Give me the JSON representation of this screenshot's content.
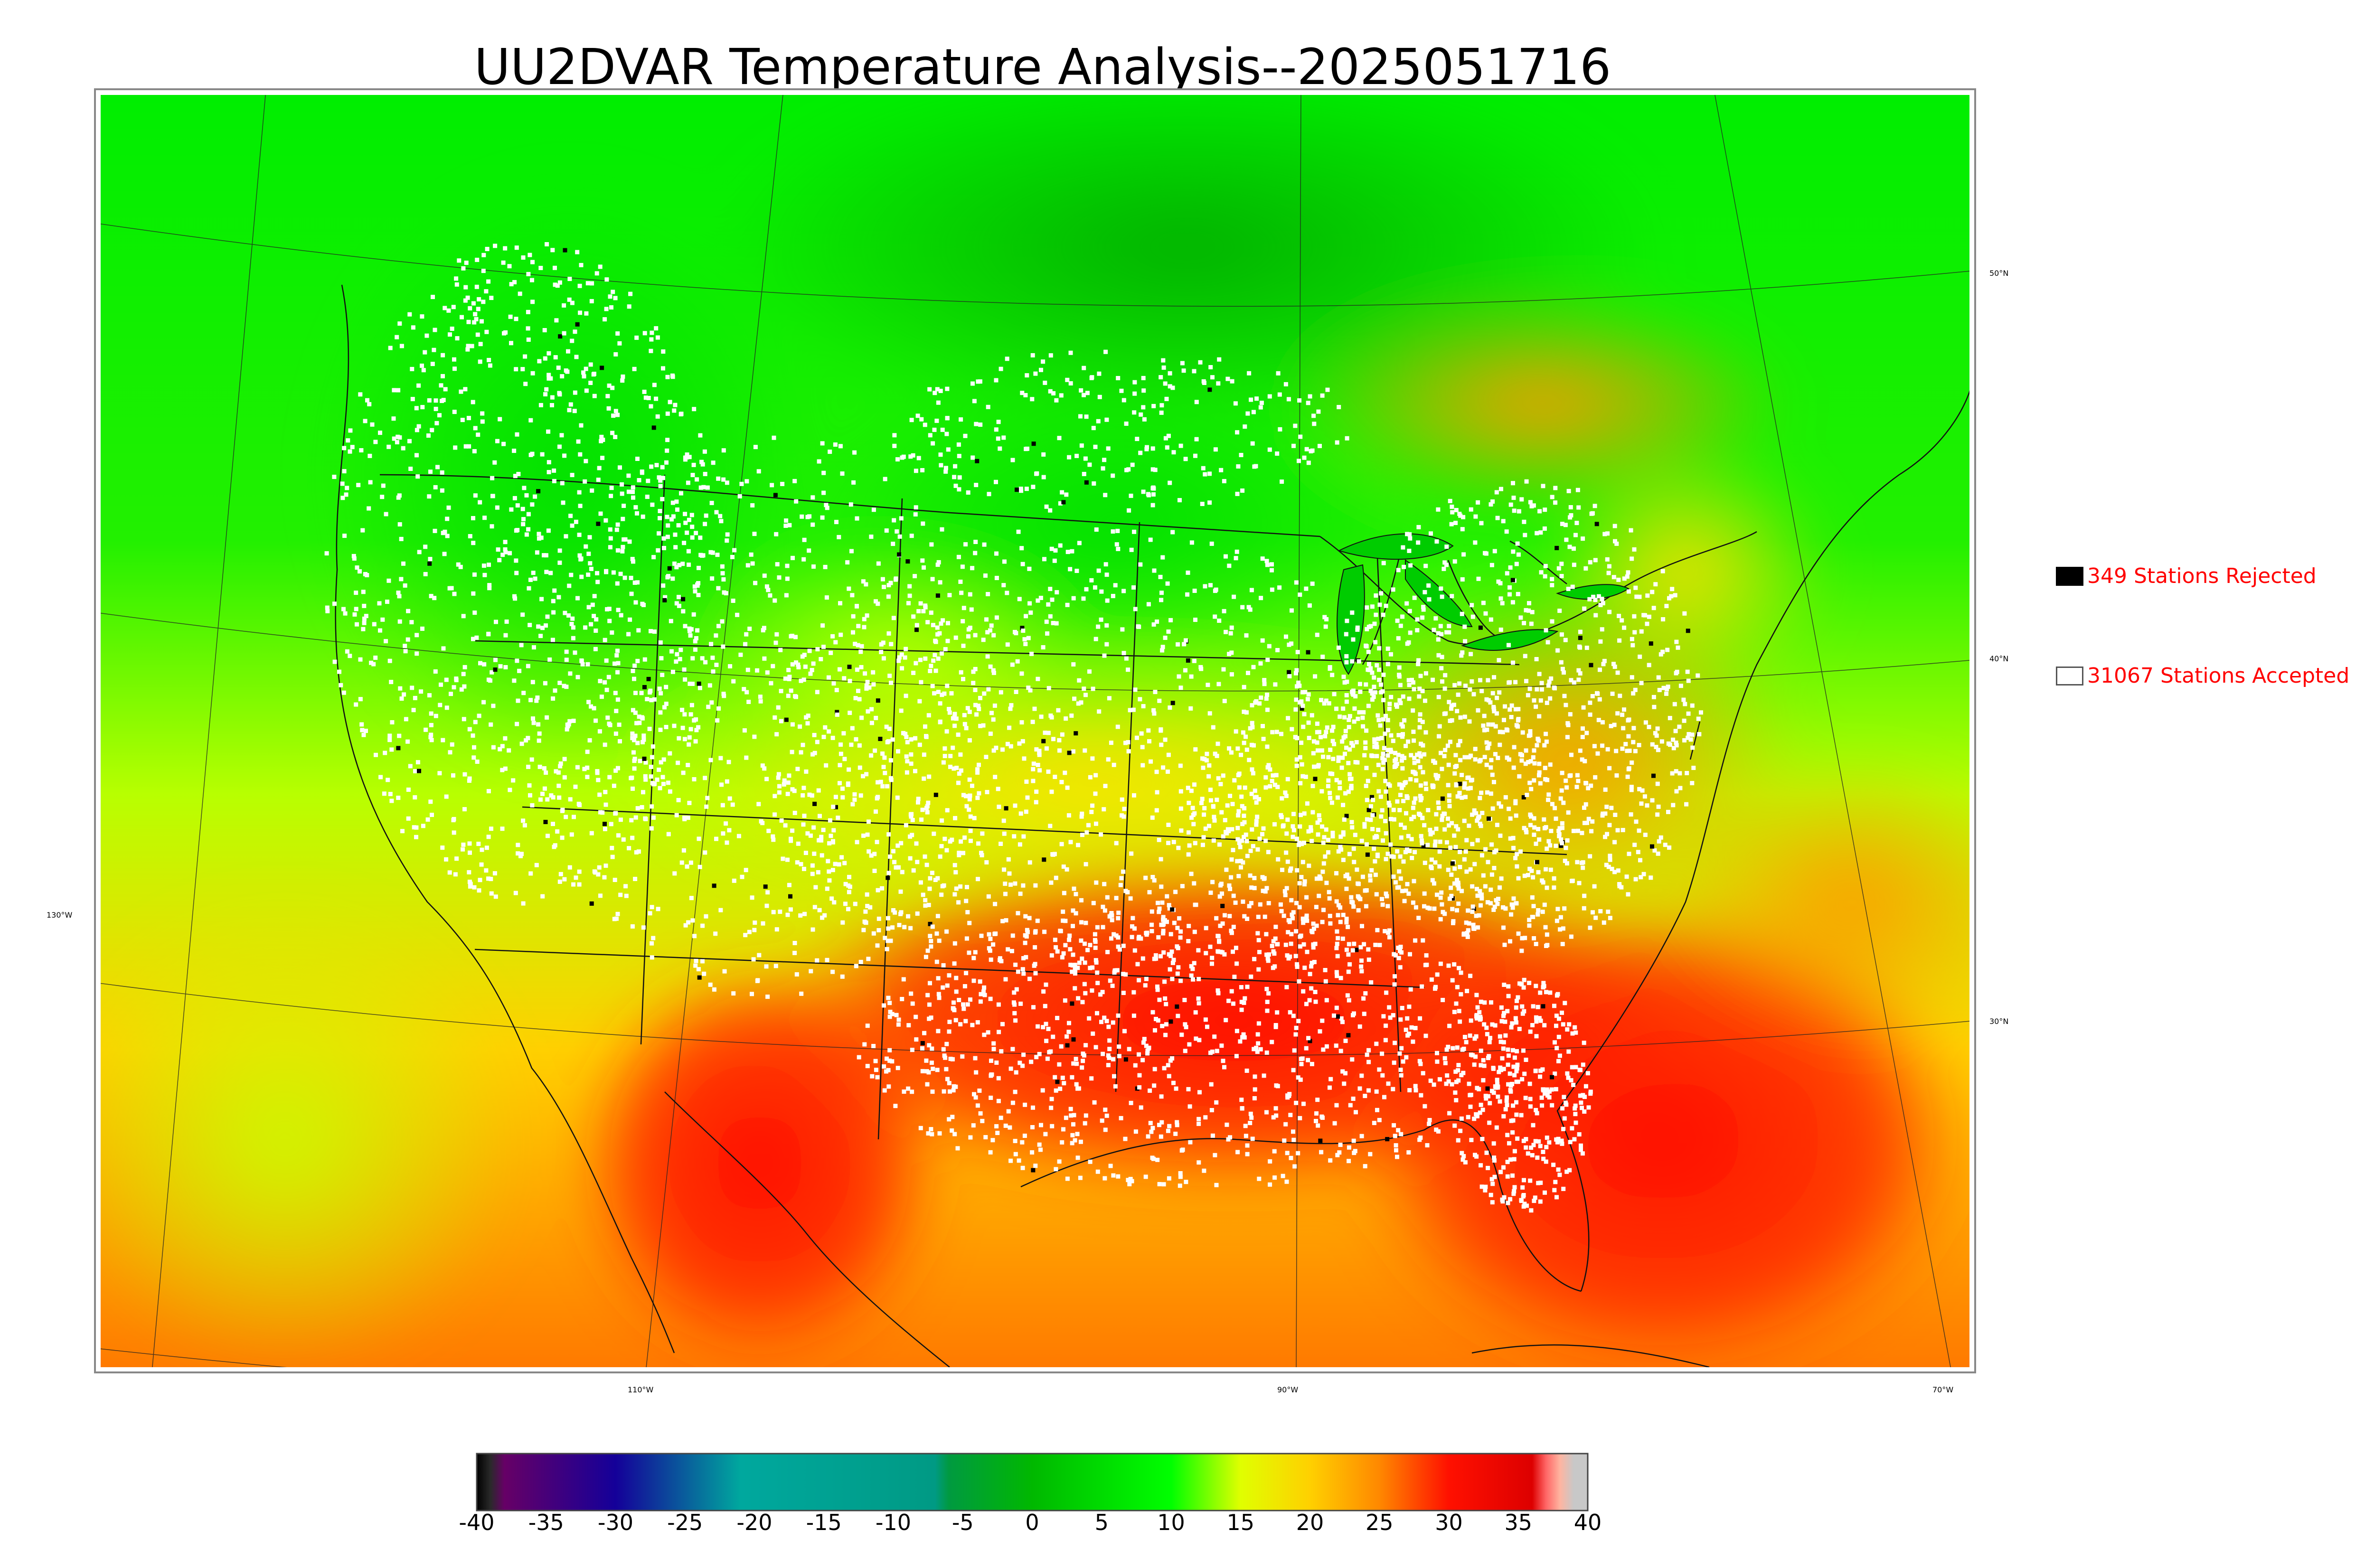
{
  "title": "UU2DVAR Temperature Analysis--2025051716",
  "legend": {
    "rejected": {
      "label": "349 Stations Rejected",
      "swatch_color": "#000000"
    },
    "accepted": {
      "label": "31067 Stations Accepted",
      "swatch_color": "#ffffff"
    },
    "text_color": "#ff0000"
  },
  "map": {
    "projection": "lambert-conformal",
    "longitude_labels": [
      "110°W",
      "90°W",
      "70°W"
    ],
    "latitude_labels": [
      "50°N",
      "40°N",
      "30°N"
    ],
    "left_longitude_label": "130°W",
    "station_marker_color": "#ffffff",
    "rejected_marker_color": "#000000"
  },
  "colorbar": {
    "min": -40,
    "max": 40,
    "tick_labels": [
      "-40",
      "-35",
      "-30",
      "-25",
      "-20",
      "-15",
      "-10",
      "-5",
      "0",
      "5",
      "10",
      "15",
      "20",
      "25",
      "30",
      "35",
      "40"
    ],
    "color_stops": [
      {
        "value": -40,
        "color": "#000000"
      },
      {
        "value": -39,
        "color": "#2a2a2a"
      },
      {
        "value": -38,
        "color": "#660066"
      },
      {
        "value": -30,
        "color": "#140099"
      },
      {
        "value": -21,
        "color": "#00a89e"
      },
      {
        "value": -7,
        "color": "#009a84"
      },
      {
        "value": -6,
        "color": "#009a40"
      },
      {
        "value": 0,
        "color": "#00b800"
      },
      {
        "value": 10,
        "color": "#00ff00"
      },
      {
        "value": 15,
        "color": "#e0ff00"
      },
      {
        "value": 20,
        "color": "#ffd000"
      },
      {
        "value": 25,
        "color": "#ff8800"
      },
      {
        "value": 30,
        "color": "#ff1000"
      },
      {
        "value": 36,
        "color": "#dd0000"
      },
      {
        "value": 37,
        "color": "#ff6666"
      },
      {
        "value": 38,
        "color": "#ffb4a0"
      },
      {
        "value": 39,
        "color": "#c8c8c8"
      },
      {
        "value": 40,
        "color": "#c8c8c8"
      }
    ]
  }
}
